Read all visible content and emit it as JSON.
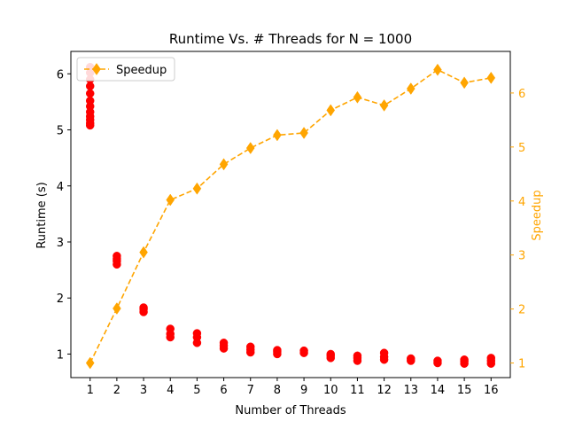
{
  "chart_data": {
    "type": "scatter+line",
    "title": "Runtime Vs. # Threads for N = 1000",
    "xlabel": "Number of Threads",
    "ylabel_left": "Runtime (s)",
    "ylabel_right": "Speedup",
    "x_ticks": [
      1,
      2,
      3,
      4,
      5,
      6,
      7,
      8,
      9,
      10,
      11,
      12,
      13,
      14,
      15,
      16
    ],
    "xlim": [
      0.28,
      16.72
    ],
    "y_left_ticks": [
      1,
      2,
      3,
      4,
      5,
      6
    ],
    "ylim_left": [
      0.58,
      6.4
    ],
    "y_right_ticks": [
      1,
      2,
      3,
      4,
      5,
      6
    ],
    "ylim_right": [
      0.73,
      6.77
    ],
    "grid": false,
    "legend": {
      "placement": "top-left",
      "entries": [
        "Speedup"
      ]
    },
    "colors": {
      "runtime": "#ff0000",
      "speedup": "#ffa500",
      "axis": "#000000"
    },
    "runtime_series": {
      "x": [
        1,
        1,
        1,
        1,
        1,
        1,
        1,
        1,
        1,
        1,
        1,
        1,
        2,
        2,
        2,
        2,
        3,
        3,
        3,
        4,
        4,
        4,
        5,
        5,
        5,
        6,
        6,
        6,
        7,
        7,
        7,
        8,
        8,
        8,
        9,
        9,
        10,
        10,
        10,
        11,
        11,
        11,
        12,
        12,
        12,
        13,
        13,
        14,
        14,
        15,
        15,
        15,
        16,
        16,
        16
      ],
      "y": [
        5.08,
        5.12,
        5.18,
        5.24,
        5.32,
        5.42,
        5.52,
        5.65,
        5.78,
        5.9,
        6.02,
        6.12,
        2.6,
        2.66,
        2.7,
        2.75,
        1.75,
        1.8,
        1.83,
        1.3,
        1.36,
        1.45,
        1.2,
        1.3,
        1.37,
        1.1,
        1.15,
        1.2,
        1.03,
        1.08,
        1.13,
        1.0,
        1.04,
        1.07,
        1.02,
        1.06,
        0.93,
        0.97,
        1.0,
        0.88,
        0.93,
        0.97,
        0.9,
        0.95,
        1.02,
        0.88,
        0.92,
        0.84,
        0.88,
        0.83,
        0.87,
        0.9,
        0.83,
        0.88,
        0.93
      ]
    },
    "speedup_series": {
      "name": "Speedup",
      "x": [
        1,
        2,
        3,
        4,
        5,
        6,
        7,
        8,
        9,
        10,
        11,
        12,
        13,
        14,
        15,
        16
      ],
      "y": [
        1.0,
        2.01,
        3.05,
        4.02,
        4.23,
        4.68,
        4.98,
        5.22,
        5.26,
        5.68,
        5.92,
        5.77,
        6.08,
        6.43,
        6.19,
        6.28
      ]
    }
  }
}
